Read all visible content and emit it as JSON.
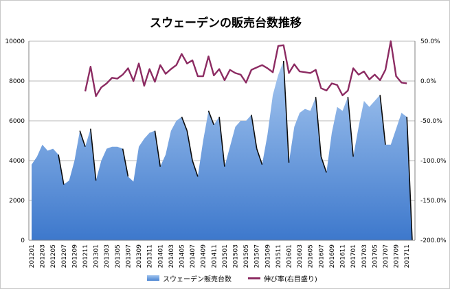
{
  "chart_data": {
    "type": "area+line",
    "title": "スウェーデンの販売台数推移",
    "x": [
      "201201",
      "201202",
      "201203",
      "201204",
      "201205",
      "201206",
      "201207",
      "201208",
      "201209",
      "201210",
      "201211",
      "201212",
      "201301",
      "201302",
      "201303",
      "201304",
      "201305",
      "201306",
      "201307",
      "201308",
      "201309",
      "201310",
      "201311",
      "201312",
      "201401",
      "201402",
      "201403",
      "201404",
      "201405",
      "201406",
      "201407",
      "201408",
      "201409",
      "201410",
      "201411",
      "201412",
      "201501",
      "201502",
      "201503",
      "201504",
      "201505",
      "201506",
      "201507",
      "201508",
      "201509",
      "201510",
      "201511",
      "201512",
      "201601",
      "201602",
      "201603",
      "201604",
      "201605",
      "201606",
      "201607",
      "201608",
      "201609",
      "201610",
      "201611",
      "201612",
      "201701",
      "201702",
      "201703",
      "201704",
      "201705",
      "201706",
      "201707",
      "201708",
      "201709",
      "201710",
      "201711",
      "201712"
    ],
    "x_tick_labels": [
      "201201",
      "201203",
      "201205",
      "201207",
      "201209",
      "201211",
      "201301",
      "201303",
      "201305",
      "201307",
      "201309",
      "201311",
      "201401",
      "201403",
      "201405",
      "201407",
      "201409",
      "201411",
      "201501",
      "201503",
      "201505",
      "201507",
      "201509",
      "201511",
      "201601",
      "201603",
      "201605",
      "201607",
      "201609",
      "201611",
      "201701",
      "201703",
      "201705",
      "201707",
      "201709",
      "201711"
    ],
    "y_left": {
      "min": 0,
      "max": 10000,
      "ticks": [
        "0",
        "2000",
        "4000",
        "6000",
        "8000",
        "10000"
      ]
    },
    "y_right": {
      "min": -200,
      "max": 50,
      "ticks": [
        "-200.0%",
        "-150.0%",
        "-100.0%",
        "-50.0%",
        "0.0%",
        "50.0%"
      ]
    },
    "grid": "horizontal",
    "legend_position": "bottom",
    "series": [
      {
        "name": "スウェーデン販売台数",
        "kind": "area",
        "axis": "left",
        "color": "#5b93dc",
        "values": [
          3800,
          4200,
          4800,
          4500,
          4600,
          4300,
          2800,
          3000,
          4000,
          5500,
          4700,
          5600,
          3000,
          4000,
          4600,
          4700,
          4700,
          4600,
          3200,
          2950,
          4700,
          5100,
          5400,
          5500,
          3700,
          4300,
          5500,
          6000,
          6200,
          5500,
          4000,
          3200,
          5000,
          6500,
          5800,
          6200,
          3700,
          4700,
          5700,
          6000,
          6000,
          6300,
          4600,
          3800,
          5300,
          7300,
          8300,
          9000,
          3900,
          5700,
          6400,
          6600,
          6500,
          7200,
          4200,
          3400,
          5400,
          6700,
          6500,
          7200,
          4200,
          5700,
          7000,
          6700,
          7000,
          7300,
          4800,
          4800,
          5600,
          6400,
          6200,
          0
        ]
      },
      {
        "name": "伸び率(右目盛り)",
        "kind": "line",
        "axis": "right",
        "color": "#8c2b62",
        "values": [
          null,
          null,
          null,
          null,
          null,
          null,
          null,
          null,
          null,
          null,
          -13,
          18,
          -19,
          -8,
          -3,
          4,
          3,
          8,
          16,
          0,
          22,
          -6,
          15,
          -1,
          20,
          9,
          15,
          20,
          34,
          22,
          26,
          6,
          6,
          31,
          7,
          15,
          1,
          14,
          10,
          8,
          -2,
          14,
          17,
          20,
          16,
          11,
          44,
          45,
          10,
          21,
          12,
          11,
          10,
          14,
          -9,
          -12,
          -3,
          -5,
          -18,
          -12,
          16,
          8,
          12,
          2,
          8,
          1,
          14,
          50,
          6,
          -2,
          -3,
          null
        ]
      }
    ]
  }
}
